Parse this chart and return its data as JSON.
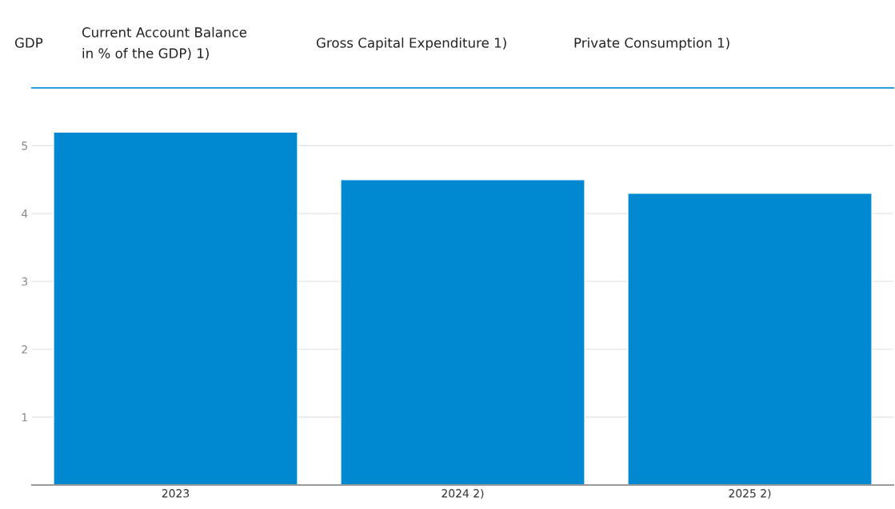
{
  "chart_data": {
    "type": "bar",
    "categories": [
      "2023",
      "2024 2)",
      "2025 2)"
    ],
    "values": [
      5.2,
      4.5,
      4.3
    ],
    "color": "#0089d1",
    "ylim": [
      0,
      5.85
    ],
    "yticks": [
      1,
      2,
      3,
      4,
      5
    ],
    "grid": "y",
    "annotations": [
      "GDP",
      "Current Account Balance\nin % of the GDP) 1)",
      "Gross Capital Expenditure 1)",
      "Private Consumption 1)"
    ]
  }
}
